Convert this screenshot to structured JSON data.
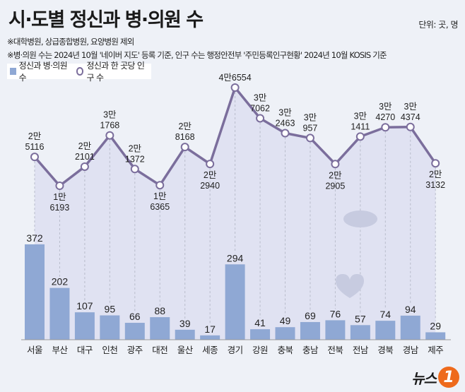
{
  "header": {
    "title": "시·도별 정신과 병·의원 수",
    "unit": "단위: 곳, 명",
    "notes": [
      "※대학병원, 상급종합병원, 요양병원 제외",
      "※병·의원 수는 2024년 10월 '네이버 지도' 등록 기준, 인구 수는 행정안전부 '주민등록인구현황' 2024년 10월 KOSIS 기준"
    ]
  },
  "legend": {
    "bar": "정신과 병·의원 수",
    "line": "정신과 한 곳당 인구 수"
  },
  "logo": {
    "text": "뉴스",
    "badge": "1"
  },
  "colors": {
    "bar": "#8fa8d4",
    "line": "#7b6e9c",
    "background": "#eef1f7",
    "logo": "#ee6a1c"
  },
  "chart_data": {
    "type": "bar+line",
    "categories": [
      "서울",
      "부산",
      "대구",
      "인천",
      "광주",
      "대전",
      "울산",
      "세종",
      "경기",
      "강원",
      "충북",
      "충남",
      "전북",
      "전남",
      "경북",
      "경남",
      "제주"
    ],
    "series": [
      {
        "name": "정신과 병·의원 수",
        "type": "bar",
        "values": [
          372,
          202,
          107,
          95,
          66,
          88,
          39,
          17,
          294,
          41,
          49,
          69,
          76,
          57,
          74,
          94,
          29
        ]
      },
      {
        "name": "정신과 한 곳당 인구 수",
        "type": "line",
        "values": [
          25116,
          16193,
          22101,
          31768,
          21372,
          16365,
          28168,
          22940,
          46554,
          37062,
          32463,
          30957,
          22905,
          31411,
          34270,
          34374,
          23132
        ],
        "labels": [
          [
            "2만",
            "5116"
          ],
          [
            "1만",
            "6193"
          ],
          [
            "2만",
            "2101"
          ],
          [
            "3만",
            "1768"
          ],
          [
            "2만",
            "1372"
          ],
          [
            "1만",
            "6365"
          ],
          [
            "2만",
            "8168"
          ],
          [
            "2만",
            "2940"
          ],
          [
            "4만6554"
          ],
          [
            "3만",
            "7062"
          ],
          [
            "3만",
            "2463"
          ],
          [
            "3만",
            "957"
          ],
          [
            "2만",
            "2905"
          ],
          [
            "3만",
            "1411"
          ],
          [
            "3만",
            "4270"
          ],
          [
            "3만",
            "4374"
          ],
          [
            "2만",
            "3132"
          ]
        ]
      }
    ],
    "grid": false,
    "legend_position": "top-left"
  }
}
